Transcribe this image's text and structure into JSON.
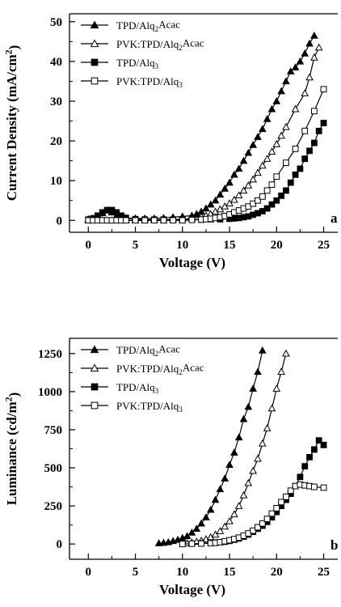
{
  "chart_data": [
    {
      "type": "line",
      "panel": "a",
      "xlabel": "Voltage (V)",
      "ylabel": "Current Density (mA/cm²)",
      "ylabel_parts": [
        "Current Density (mA/cm",
        "2",
        ")"
      ],
      "xlim": [
        -2,
        26.5
      ],
      "ylim": [
        -3,
        52
      ],
      "xticks": [
        0,
        5,
        10,
        15,
        20,
        25
      ],
      "yticks": [
        0,
        10,
        20,
        30,
        40,
        50
      ],
      "grid": false,
      "legend_position": "top-left",
      "series": [
        {
          "name": "TPD/Alq2Acac",
          "name_parts": [
            "TPD/Alq",
            "2",
            "Acac"
          ],
          "marker": "triangle-filled",
          "x": [
            0,
            0.5,
            1,
            1.5,
            2,
            2.5,
            3,
            3.5,
            4,
            5,
            6,
            7,
            8,
            9,
            10,
            11,
            11.5,
            12,
            12.5,
            13,
            13.5,
            14,
            14.5,
            15,
            15.5,
            16,
            16.5,
            17,
            17.5,
            18,
            18.5,
            19,
            19.5,
            20,
            20.5,
            21,
            21.5,
            22,
            22.5,
            23,
            23.5,
            24
          ],
          "y": [
            0.3,
            0.5,
            1,
            1.8,
            2.5,
            2,
            1.2,
            0.8,
            0.6,
            0.5,
            0.5,
            0.5,
            0.6,
            0.8,
            1,
            1.2,
            1.6,
            2.2,
            3,
            4,
            5,
            6.5,
            8,
            9.5,
            11.5,
            13,
            15,
            17,
            19,
            21,
            23,
            25.5,
            28,
            30,
            32.5,
            35,
            37.5,
            38.5,
            40,
            42,
            44.5,
            46.5
          ]
        },
        {
          "name": "PVK:TPD/Alq2Acac",
          "name_parts": [
            "PVK:TPD/Alq",
            "2",
            "Acac"
          ],
          "marker": "triangle-open",
          "x": [
            0,
            0.5,
            1,
            1.5,
            2,
            2.5,
            3,
            3.5,
            4,
            5,
            6,
            7,
            8,
            9,
            10,
            11,
            12,
            12.5,
            13,
            13.5,
            14,
            14.5,
            15,
            15.5,
            16,
            16.5,
            17,
            17.5,
            18,
            18.5,
            19,
            19.5,
            20,
            20.5,
            21,
            22,
            23,
            23.5,
            24,
            24.5
          ],
          "y": [
            0,
            0,
            0,
            0,
            0,
            0,
            0,
            0,
            0,
            0,
            0,
            0.1,
            0.1,
            0.2,
            0.3,
            0.5,
            0.9,
            1.2,
            1.6,
            2.2,
            2.8,
            3.5,
            4.3,
            5.2,
            6.3,
            7.5,
            8.8,
            10.3,
            12,
            13.8,
            15.5,
            17.3,
            19.2,
            21.3,
            23.5,
            28,
            32,
            36,
            41,
            43.5
          ]
        },
        {
          "name": "TPD/Alq3",
          "name_parts": [
            "TPD/Alq",
            "3",
            ""
          ],
          "marker": "square-filled",
          "x": [
            0,
            0.5,
            1,
            1.5,
            2,
            2.5,
            3,
            3.5,
            4,
            5,
            6,
            7,
            8,
            9,
            10,
            11,
            12,
            13,
            14,
            15,
            15.5,
            16,
            16.5,
            17,
            17.5,
            18,
            18.5,
            19,
            19.5,
            20,
            20.5,
            21,
            21.5,
            22,
            22.5,
            23,
            23.5,
            24,
            24.5,
            25
          ],
          "y": [
            0.2,
            0.5,
            1.2,
            2,
            2.6,
            2.6,
            2,
            1.2,
            0.6,
            0.3,
            0.2,
            0.2,
            0.2,
            0.2,
            0.2,
            0.2,
            0.2,
            0.3,
            0.3,
            0.4,
            0.5,
            0.6,
            0.8,
            1,
            1.4,
            1.8,
            2.3,
            3,
            4,
            5,
            6.2,
            7.5,
            9.5,
            11.5,
            13,
            15.5,
            17.5,
            19.5,
            22.5,
            24.5
          ]
        },
        {
          "name": "PVK:TPD/Alq3",
          "name_parts": [
            "PVK:TPD/Alq",
            "3",
            ""
          ],
          "marker": "square-open",
          "x": [
            0,
            0.5,
            1,
            1.5,
            2,
            2.5,
            3,
            3.5,
            4,
            5,
            6,
            7,
            8,
            9,
            10,
            11,
            12,
            12.5,
            13,
            13.5,
            14,
            14.5,
            15,
            15.5,
            16,
            16.5,
            17,
            17.5,
            18,
            18.5,
            19,
            19.5,
            20,
            21,
            22,
            23,
            24,
            25
          ],
          "y": [
            0,
            0,
            0,
            0,
            0,
            0,
            0,
            0,
            0,
            0,
            0,
            0,
            0,
            0,
            0,
            0.1,
            0.2,
            0.3,
            0.4,
            0.6,
            0.8,
            1.1,
            1.5,
            2,
            2.5,
            3,
            3.5,
            4.2,
            5,
            6,
            7.5,
            9,
            11,
            14.5,
            18,
            22.5,
            27.5,
            33
          ]
        }
      ]
    },
    {
      "type": "line",
      "panel": "b",
      "xlabel": "Voltage (V)",
      "ylabel": "Luminance (cd/m²)",
      "ylabel_parts": [
        "Luminance (cd/m",
        "2",
        ")"
      ],
      "xlim": [
        -2,
        26.5
      ],
      "ylim": [
        -100,
        1350
      ],
      "xticks": [
        0,
        5,
        10,
        15,
        20,
        25
      ],
      "yticks": [
        0,
        250,
        500,
        750,
        1000,
        1250
      ],
      "grid": false,
      "legend_position": "top-left",
      "series": [
        {
          "name": "TPD/Alq2Acac",
          "name_parts": [
            "TPD/Alq",
            "2",
            "Acac"
          ],
          "marker": "triangle-filled",
          "x": [
            7.5,
            8,
            8.5,
            9,
            9.5,
            10,
            10.5,
            11,
            11.5,
            12,
            12.5,
            13,
            13.5,
            14,
            14.5,
            15,
            15.5,
            16,
            16.5,
            17,
            17.5,
            18,
            18.5
          ],
          "y": [
            5,
            8,
            12,
            20,
            28,
            40,
            52,
            75,
            100,
            135,
            175,
            225,
            290,
            360,
            430,
            520,
            600,
            700,
            820,
            900,
            1020,
            1130,
            1270
          ]
        },
        {
          "name": "PVK:TPD/Alq2Acac",
          "name_parts": [
            "PVK:TPD/Alq",
            "2",
            "Acac"
          ],
          "marker": "triangle-open",
          "x": [
            10.5,
            11,
            11.5,
            12,
            12.5,
            13,
            13.5,
            14,
            14.5,
            15,
            15.5,
            16,
            16.5,
            17,
            17.5,
            18,
            18.5,
            19,
            19.5,
            20,
            20.5,
            21
          ],
          "y": [
            5,
            10,
            15,
            22,
            32,
            45,
            62,
            85,
            115,
            150,
            195,
            250,
            320,
            400,
            480,
            560,
            660,
            760,
            890,
            1020,
            1130,
            1250
          ]
        },
        {
          "name": "TPD/Alq3",
          "name_parts": [
            "TPD/Alq",
            "3",
            ""
          ],
          "marker": "square-filled",
          "x": [
            12,
            13,
            13.5,
            14,
            14.5,
            15,
            15.5,
            16,
            16.5,
            17,
            17.5,
            18,
            18.5,
            19,
            19.5,
            20,
            20.5,
            21,
            21.5,
            22,
            22.5,
            23,
            23.5,
            24,
            24.5,
            25
          ],
          "y": [
            5,
            8,
            10,
            12,
            15,
            20,
            28,
            36,
            48,
            62,
            80,
            100,
            120,
            145,
            175,
            210,
            250,
            290,
            330,
            380,
            440,
            510,
            570,
            620,
            680,
            650
          ]
        },
        {
          "name": "PVK:TPD/Alq3",
          "name_parts": [
            "PVK:TPD/Alq",
            "3",
            ""
          ],
          "marker": "square-open",
          "x": [
            10,
            11,
            12,
            13,
            13.5,
            14,
            14.5,
            15,
            15.5,
            16,
            16.5,
            17,
            17.5,
            18,
            18.5,
            19,
            19.5,
            20,
            20.5,
            21,
            21.5,
            22,
            22.5,
            23,
            23.5,
            24,
            25
          ],
          "y": [
            0,
            2,
            3,
            5,
            8,
            12,
            18,
            25,
            32,
            42,
            55,
            70,
            88,
            110,
            135,
            165,
            200,
            235,
            275,
            310,
            350,
            380,
            390,
            385,
            380,
            375,
            370
          ]
        }
      ]
    }
  ]
}
